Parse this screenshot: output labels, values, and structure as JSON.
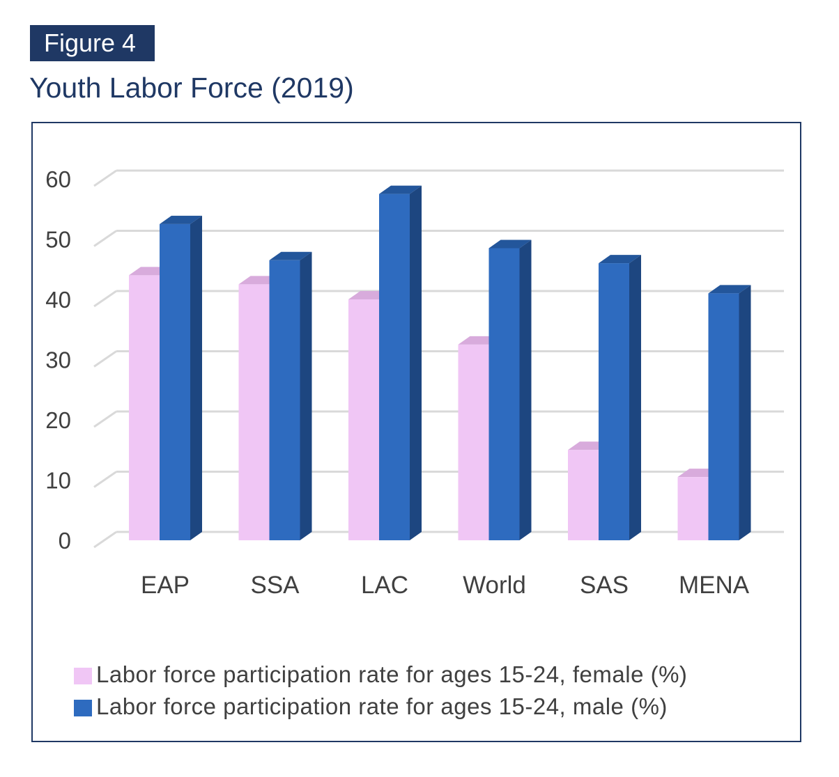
{
  "figure_label": "Figure 4",
  "figure_title": "Youth Labor Force (2019)",
  "chart_data": {
    "type": "bar",
    "title": "Youth Labor Force (2019)",
    "categories": [
      "EAP",
      "SSA",
      "LAC",
      "World",
      "SAS",
      "MENA"
    ],
    "series": [
      {
        "name": "Labor force participation rate for ages 15-24, female (%)",
        "values": [
          44,
          42.5,
          40,
          32.5,
          15,
          10.5
        ],
        "color": "#f0c6f5"
      },
      {
        "name": "Labor force participation rate for ages 15-24, male (%)",
        "values": [
          52.5,
          46.5,
          57.5,
          48.5,
          46,
          41
        ],
        "color": "#2e6bbf"
      }
    ],
    "y_ticks": [
      0,
      10,
      20,
      30,
      40,
      50,
      60
    ],
    "ylim": [
      0,
      63
    ],
    "grid": true,
    "legend_position": "bottom",
    "xlabel": "",
    "ylabel": ""
  },
  "legend": {
    "female_label": "Labor force participation rate for ages 15-24, female (%)",
    "male_label": "Labor force participation rate for ages 15-24, male (%)",
    "female_color": "#f0c6f5",
    "male_color": "#2e6bbf"
  }
}
